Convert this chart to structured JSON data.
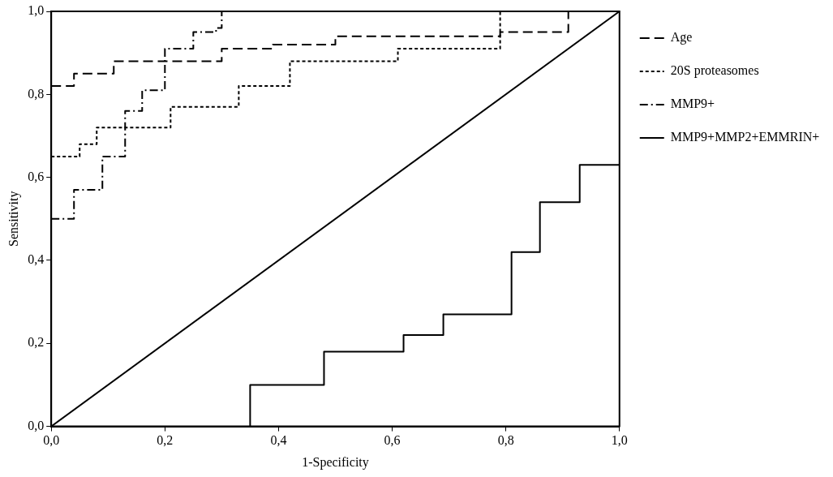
{
  "chart_data": {
    "type": "step",
    "xlabel": "1-Specificity",
    "ylabel": "Sensitivity",
    "xlim": [
      0,
      1
    ],
    "ylim": [
      0,
      1
    ],
    "xticks": [
      {
        "value": 0,
        "label": "0,0"
      },
      {
        "value": 0.2,
        "label": "0,2"
      },
      {
        "value": 0.4,
        "label": "0,4"
      },
      {
        "value": 0.6,
        "label": "0,6"
      },
      {
        "value": 0.8,
        "label": "0,8"
      },
      {
        "value": 1,
        "label": "1,0"
      }
    ],
    "yticks": [
      {
        "value": 0,
        "label": "0,0"
      },
      {
        "value": 0.2,
        "label": "0,2"
      },
      {
        "value": 0.4,
        "label": "0,4"
      },
      {
        "value": 0.6,
        "label": "0,6"
      },
      {
        "value": 0.8,
        "label": "0,8"
      },
      {
        "value": 1,
        "label": "1,0"
      }
    ],
    "grid": false,
    "legend": "right",
    "marker": "none",
    "series": [
      {
        "name": "Age",
        "color": "#000000",
        "line_style": "dashed",
        "x": [
          0,
          0.04,
          0.11,
          0.3,
          0.39,
          0.5,
          0.79,
          0.91,
          1
        ],
        "values": [
          0.82,
          0.85,
          0.88,
          0.91,
          0.92,
          0.94,
          0.95,
          1,
          1
        ]
      },
      {
        "name": "20S proteasomes",
        "color": "#000000",
        "line_style": "dotted",
        "x": [
          0,
          0.05,
          0.08,
          0.21,
          0.33,
          0.42,
          0.61,
          0.79,
          1
        ],
        "values": [
          0.65,
          0.68,
          0.72,
          0.77,
          0.82,
          0.88,
          0.91,
          1,
          1
        ]
      },
      {
        "name": "MMP9+",
        "color": "#000000",
        "line_style": "dashdot",
        "x": [
          0,
          0.04,
          0.09,
          0.13,
          0.16,
          0.2,
          0.25,
          0.29,
          0.3,
          1
        ],
        "values": [
          0.5,
          0.57,
          0.65,
          0.76,
          0.81,
          0.91,
          0.95,
          0.96,
          1,
          1
        ]
      },
      {
        "name": "MMP9+MMP2+EMMRIN+",
        "color": "#000000",
        "line_style": "solid",
        "x": [
          0.35,
          0.35,
          0.48,
          0.62,
          0.69,
          0.81,
          0.86,
          0.93,
          1
        ],
        "values": [
          0,
          0.1,
          0.18,
          0.22,
          0.27,
          0.42,
          0.54,
          0.63,
          0.63
        ]
      },
      {
        "type": "line",
        "color": "#000000",
        "line_style": "solid",
        "x": [
          0,
          1
        ],
        "values": [
          0,
          1
        ]
      }
    ]
  }
}
